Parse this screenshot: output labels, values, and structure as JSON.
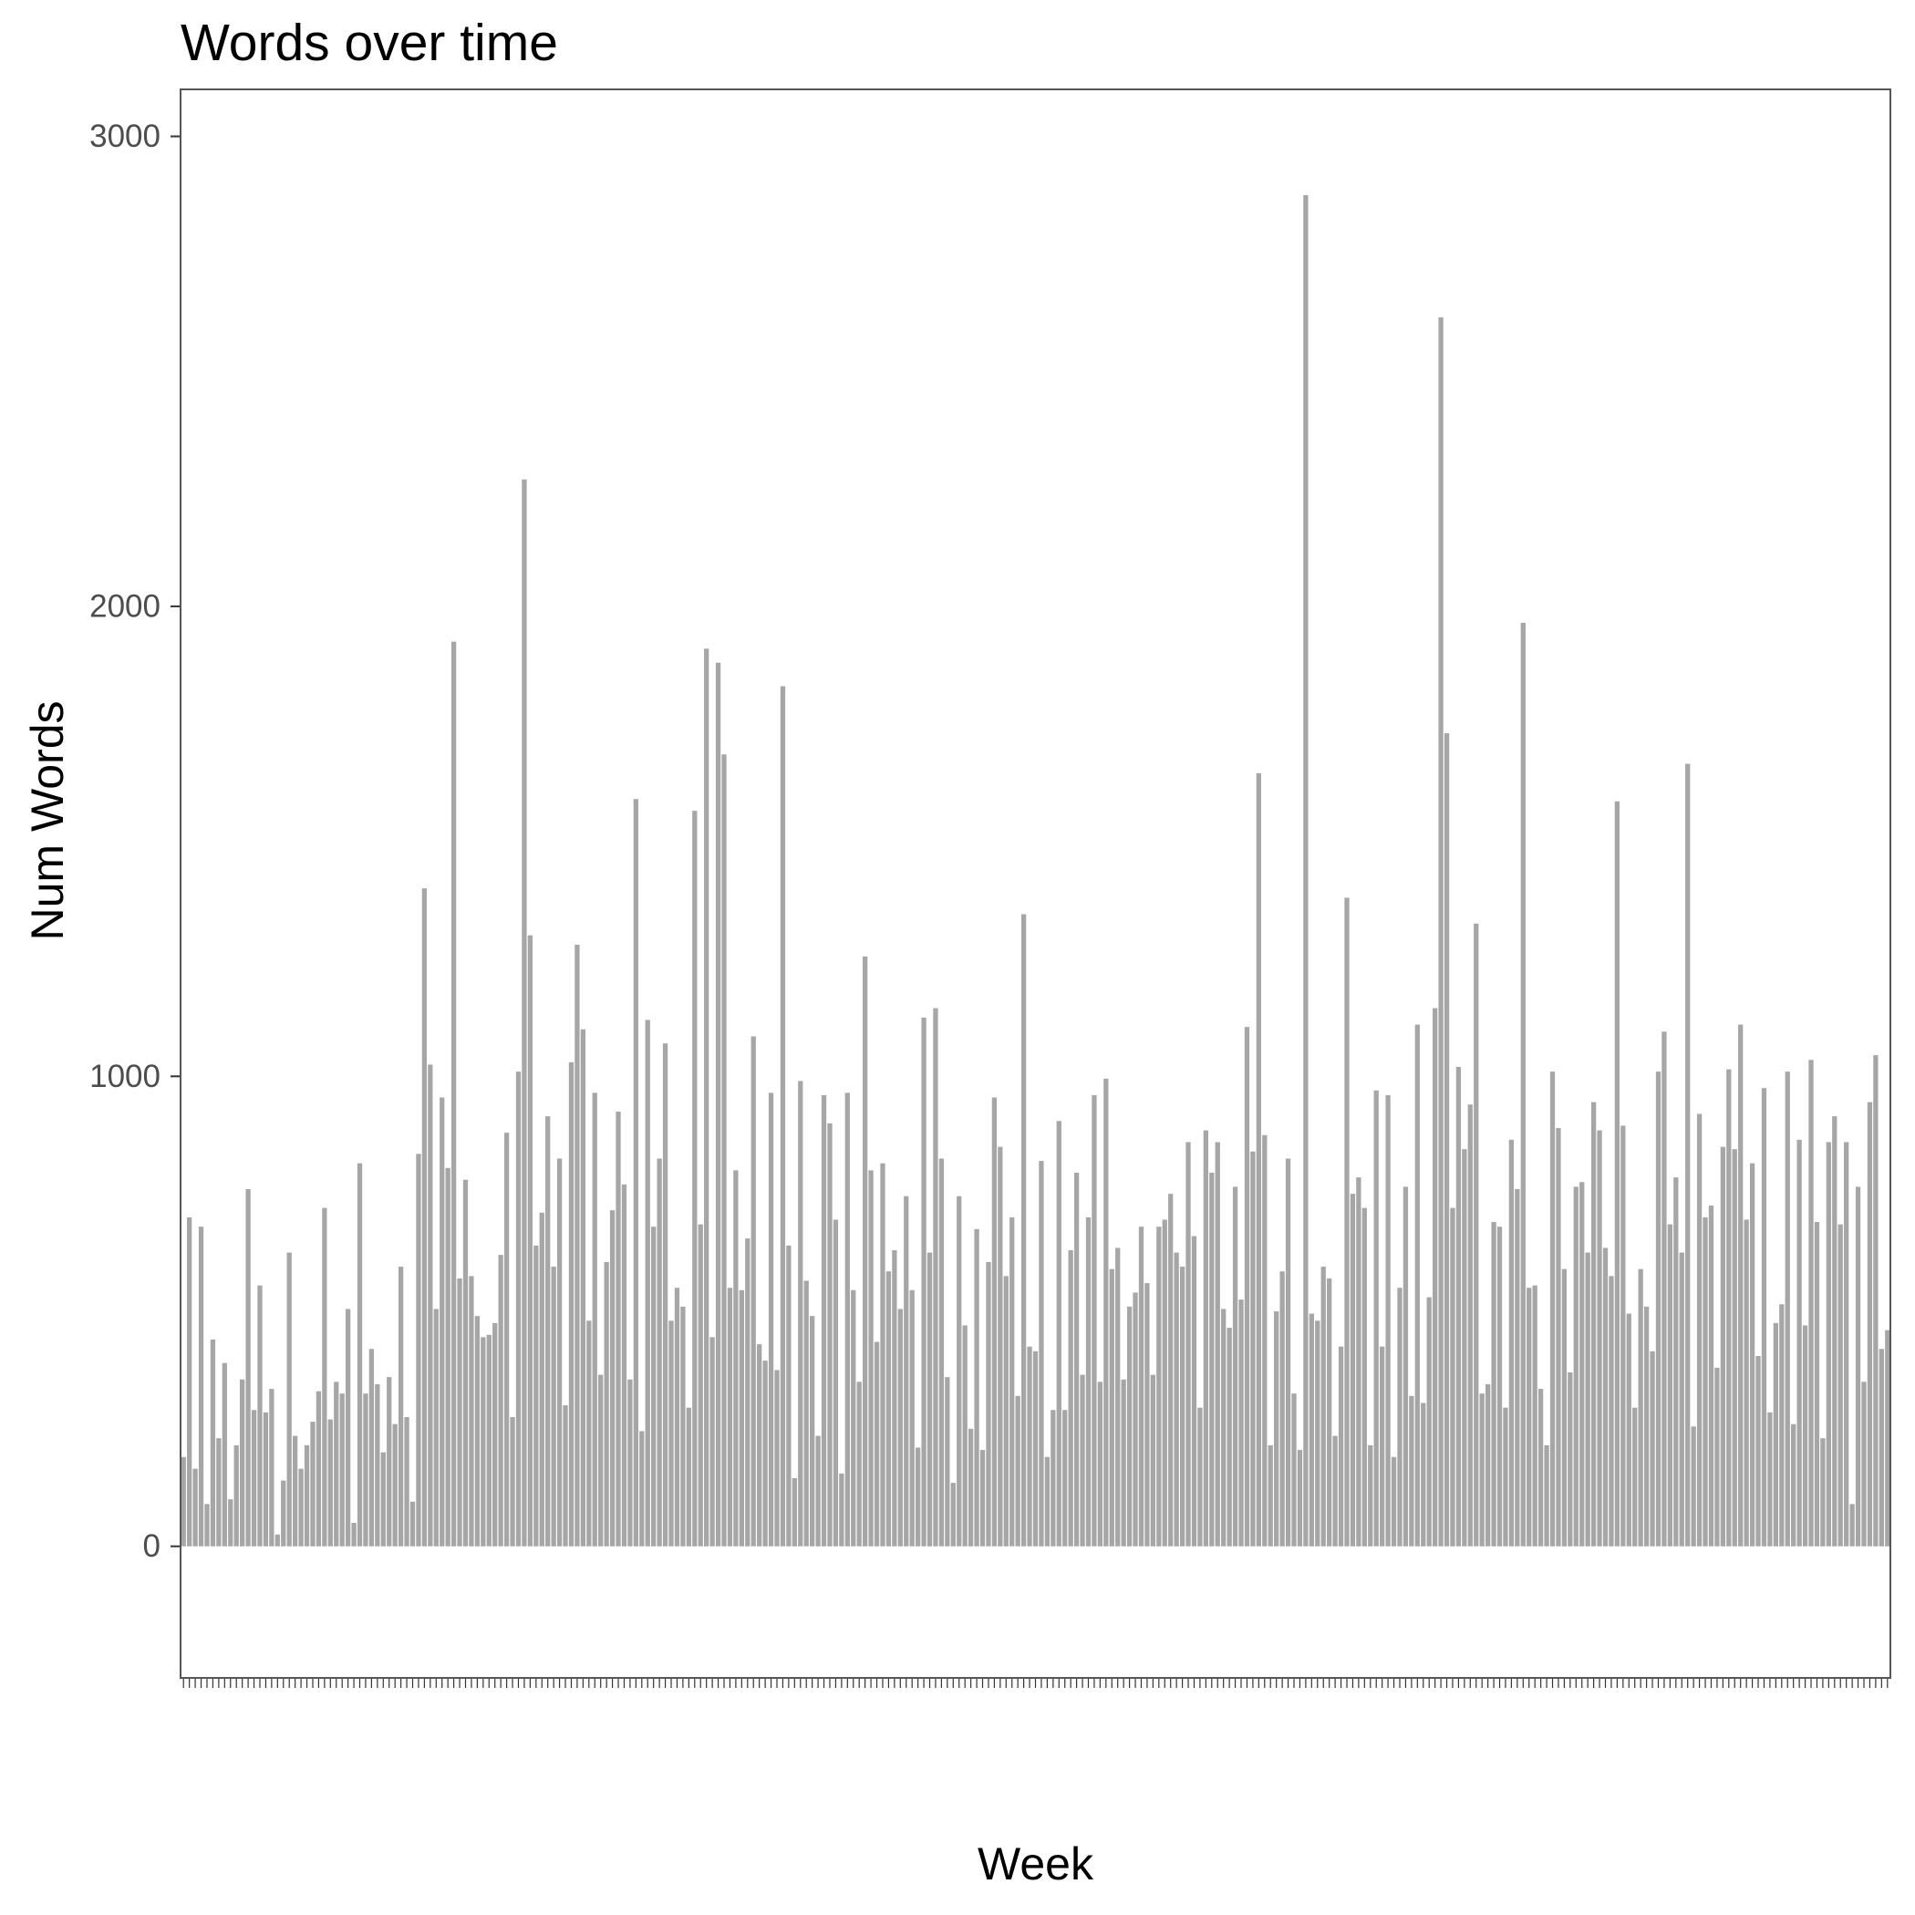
{
  "chart_data": {
    "type": "bar",
    "title": "Words over time",
    "xlabel": "Week",
    "ylabel": "Num Words",
    "ylim": [
      -280,
      3100
    ],
    "yticks": [
      0,
      1000,
      2000,
      3000
    ],
    "bar_color": "#a6a6a6",
    "panel_border_color": "#555555",
    "tick_label_color": "#4d4d4d",
    "grid": false,
    "values": [
      190,
      700,
      165,
      680,
      90,
      440,
      230,
      390,
      100,
      215,
      355,
      760,
      290,
      555,
      285,
      335,
      25,
      140,
      625,
      235,
      165,
      215,
      265,
      330,
      720,
      270,
      350,
      325,
      505,
      50,
      815,
      325,
      420,
      345,
      200,
      360,
      260,
      595,
      275,
      95,
      835,
      1400,
      1025,
      505,
      955,
      805,
      1925,
      570,
      780,
      575,
      490,
      445,
      450,
      475,
      620,
      880,
      275,
      1010,
      2270,
      1300,
      640,
      710,
      915,
      595,
      825,
      300,
      1030,
      1280,
      1100,
      480,
      965,
      365,
      605,
      715,
      925,
      770,
      355,
      1590,
      245,
      1120,
      680,
      825,
      1070,
      480,
      550,
      510,
      295,
      1565,
      685,
      1910,
      445,
      1880,
      1685,
      550,
      800,
      545,
      655,
      1085,
      430,
      395,
      965,
      375,
      1830,
      640,
      145,
      990,
      565,
      490,
      235,
      960,
      900,
      695,
      155,
      965,
      545,
      350,
      1255,
      800,
      435,
      815,
      585,
      630,
      505,
      745,
      545,
      210,
      1125,
      625,
      1145,
      825,
      360,
      135,
      745,
      470,
      250,
      675,
      205,
      605,
      955,
      850,
      575,
      700,
      320,
      1345,
      425,
      415,
      820,
      190,
      290,
      905,
      290,
      630,
      795,
      365,
      700,
      960,
      350,
      995,
      590,
      635,
      355,
      510,
      540,
      680,
      560,
      365,
      680,
      695,
      750,
      625,
      595,
      860,
      660,
      295,
      885,
      795,
      860,
      505,
      465,
      765,
      525,
      1105,
      840,
      1645,
      875,
      215,
      500,
      585,
      825,
      325,
      205,
      2875,
      495,
      480,
      595,
      570,
      235,
      425,
      1380,
      750,
      785,
      720,
      215,
      970,
      425,
      960,
      190,
      550,
      765,
      320,
      1110,
      305,
      530,
      1145,
      2615,
      1730,
      720,
      1020,
      845,
      940,
      1325,
      325,
      345,
      690,
      680,
      295,
      865,
      760,
      1965,
      550,
      555,
      335,
      215,
      1010,
      890,
      590,
      370,
      765,
      775,
      625,
      945,
      885,
      635,
      575,
      1585,
      895,
      495,
      295,
      590,
      510,
      415,
      1010,
      1095,
      685,
      785,
      625,
      1665,
      255,
      920,
      700,
      725,
      380,
      850,
      1015,
      845,
      1110,
      695,
      815,
      405,
      975,
      285,
      475,
      515,
      1010,
      260,
      865,
      470,
      1035,
      690,
      230,
      860,
      915,
      685,
      860,
      90,
      765,
      350,
      945,
      1045,
      420,
      460
    ]
  }
}
